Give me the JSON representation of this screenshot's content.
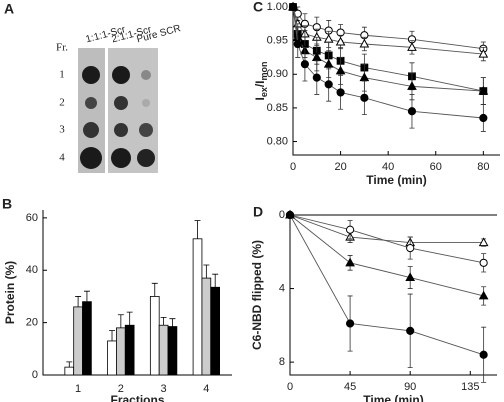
{
  "blot": {
    "label": "A",
    "row_header": "Fr.",
    "rows": [
      "1",
      "2",
      "3",
      "4"
    ],
    "columns": [
      "1:1:1-Scr",
      "2:1:1-Scr",
      "Pure SCR"
    ]
  },
  "chart_data": [
    {
      "type": "bar",
      "label": "B",
      "xlabel": "Fractions",
      "ylabel": "Protein (%)",
      "categories": [
        "1",
        "2",
        "3",
        "4"
      ],
      "series": [
        {
          "color": "#ffffff",
          "values": [
            3,
            13,
            30,
            52
          ],
          "errors": [
            2,
            4,
            5,
            7
          ]
        },
        {
          "color": "#cccccc",
          "values": [
            26,
            18,
            19,
            37
          ],
          "errors": [
            4,
            5,
            3,
            5
          ]
        },
        {
          "color": "#000000",
          "values": [
            28,
            19,
            18.5,
            33.5
          ],
          "errors": [
            4,
            5,
            3,
            5
          ]
        }
      ],
      "ylim": [
        0,
        63
      ],
      "yticks": [
        0,
        20,
        40,
        60
      ]
    },
    {
      "type": "line",
      "label": "C",
      "xlabel": "Time (min)",
      "ylabel": [
        "I",
        "ex",
        "/I",
        "mon"
      ],
      "x": [
        0,
        2,
        5,
        10,
        15,
        20,
        30,
        50,
        80
      ],
      "series": [
        {
          "marker": "open-circle",
          "color": "#000000",
          "values": [
            1.0,
            0.99,
            0.975,
            0.97,
            0.965,
            0.962,
            0.958,
            0.952,
            0.938
          ],
          "errors": [
            0,
            0.01,
            0.015,
            0.015,
            0.015,
            0.012,
            0.012,
            0.012,
            0.01
          ]
        },
        {
          "marker": "open-triangle",
          "color": "#000000",
          "values": [
            1.0,
            0.975,
            0.96,
            0.955,
            0.952,
            0.948,
            0.945,
            0.94,
            0.93
          ],
          "errors": [
            0,
            0.01,
            0.012,
            0.012,
            0.012,
            0.01,
            0.01,
            0.01,
            0.01
          ]
        },
        {
          "marker": "filled-square",
          "color": "#000000",
          "values": [
            1.0,
            0.96,
            0.945,
            0.935,
            0.928,
            0.92,
            0.91,
            0.897,
            0.875
          ],
          "errors": [
            0,
            0.015,
            0.02,
            0.02,
            0.02,
            0.02,
            0.02,
            0.02,
            0.02
          ]
        },
        {
          "marker": "filled-triangle",
          "color": "#000000",
          "values": [
            1.0,
            0.955,
            0.935,
            0.925,
            0.915,
            0.905,
            0.895,
            0.882,
            0.875
          ],
          "errors": [
            0,
            0.015,
            0.02,
            0.02,
            0.02,
            0.02,
            0.02,
            0.02,
            0.02
          ]
        },
        {
          "marker": "filled-circle",
          "color": "#000000",
          "values": [
            1.0,
            0.945,
            0.915,
            0.895,
            0.885,
            0.873,
            0.865,
            0.845,
            0.835
          ],
          "errors": [
            0,
            0.02,
            0.025,
            0.025,
            0.025,
            0.025,
            0.025,
            0.025,
            0.02
          ]
        }
      ],
      "xlim": [
        0,
        87
      ],
      "ylim": [
        0.78,
        1.0
      ],
      "xticks": [
        0,
        20,
        40,
        60,
        80
      ],
      "yticks": [
        {
          "value": 0.8,
          "label": "0.80"
        },
        0.85,
        {
          "value": 0.9,
          "label": "0.90"
        },
        0.95,
        {
          "value": 1,
          "label": "1.00"
        }
      ]
    },
    {
      "type": "line",
      "label": "D",
      "xlabel": "Time (min)",
      "ylabel": "C6-NBD flipped (%)",
      "x": [
        0,
        45,
        90,
        145
      ],
      "series": [
        {
          "marker": "open-triangle",
          "color": "#000000",
          "values": [
            0,
            1.2,
            1.5,
            1.5
          ],
          "errors": [
            0,
            0.3,
            0.3,
            0.2
          ]
        },
        {
          "marker": "open-circle",
          "color": "#000000",
          "values": [
            0,
            0.8,
            1.8,
            2.6
          ],
          "errors": [
            0,
            0.5,
            0.6,
            0.5
          ]
        },
        {
          "marker": "filled-triangle",
          "color": "#000000",
          "values": [
            0,
            2.6,
            3.4,
            4.4
          ],
          "errors": [
            0,
            0.4,
            0.6,
            0.5
          ]
        },
        {
          "marker": "filled-circle",
          "color": "#000000",
          "values": [
            0,
            5.9,
            6.3,
            7.6
          ],
          "errors": [
            0,
            1.5,
            2.0,
            1.5
          ]
        }
      ],
      "xlim": [
        0,
        155
      ],
      "ylim": [
        8.7,
        0
      ],
      "xticks": [
        0,
        45,
        90,
        135
      ],
      "yticks": [
        0,
        4,
        8
      ]
    }
  ]
}
